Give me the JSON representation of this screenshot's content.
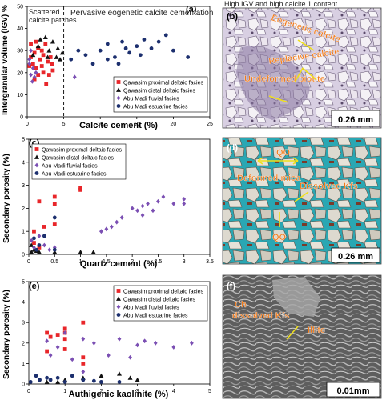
{
  "chart_data": [
    {
      "id": "a",
      "type": "scatter",
      "panel_label": "(a)",
      "xlabel": "Calcite cement (%)",
      "ylabel": "Intergranular volume (IGV) %",
      "xlim": [
        0,
        25
      ],
      "ylim": [
        0,
        50
      ],
      "xticks": [
        0,
        5,
        10,
        15,
        20,
        25
      ],
      "yticks": [
        0,
        10,
        20,
        30,
        40,
        50
      ],
      "divider_x": 5,
      "annotations": [
        "Scattered calcite patches",
        "Pervasive eogenetic calcite cementation"
      ],
      "legend_position": "bottom-right",
      "series": [
        {
          "name": "Qawasim proximal deltaic facies",
          "marker": "square",
          "color": "#e8262a",
          "points": [
            [
              0.5,
              27
            ],
            [
              0.8,
              24
            ],
            [
              1,
              29
            ],
            [
              1.2,
              22
            ],
            [
              1.5,
              31
            ],
            [
              1.8,
              26
            ],
            [
              2,
              23
            ],
            [
              2.2,
              28
            ],
            [
              2.5,
              33
            ],
            [
              2.8,
              25
            ],
            [
              3,
              19
            ],
            [
              3.2,
              27
            ],
            [
              3.5,
              21
            ],
            [
              1,
              17
            ],
            [
              0.5,
              33
            ],
            [
              1.5,
              19
            ],
            [
              2,
              30
            ],
            [
              0.3,
              23
            ],
            [
              2.6,
              15
            ],
            [
              3.4,
              24
            ],
            [
              1.2,
              34
            ],
            [
              2.2,
              20
            ]
          ]
        },
        {
          "name": "Qawasim distal deltaic facies",
          "marker": "triangle",
          "color": "#111111",
          "points": [
            [
              0.8,
              28
            ],
            [
              1.5,
              32
            ],
            [
              2.5,
              36
            ],
            [
              3,
              30
            ],
            [
              3.5,
              34
            ],
            [
              4,
              27
            ],
            [
              4.5,
              26
            ],
            [
              4.8,
              29
            ],
            [
              2.8,
              27
            ],
            [
              1.8,
              35
            ],
            [
              4.2,
              31
            ]
          ]
        },
        {
          "name": "Abu Madi fluvial facies",
          "marker": "diamond",
          "color": "#7b4fb3",
          "points": [
            [
              0.3,
              24
            ],
            [
              0.5,
              19
            ],
            [
              0.8,
              22
            ],
            [
              1,
              18
            ],
            [
              0.5,
              30
            ],
            [
              1.2,
              20
            ],
            [
              0.3,
              26
            ],
            [
              6.5,
              18
            ],
            [
              0.7,
              16
            ]
          ]
        },
        {
          "name": "Abu Madi estuarine facies",
          "marker": "circle",
          "color": "#1c2f6e",
          "points": [
            [
              6,
              26
            ],
            [
              8,
              28
            ],
            [
              9,
              24
            ],
            [
              10,
              30
            ],
            [
              11,
              33
            ],
            [
              12,
              27
            ],
            [
              13,
              34
            ],
            [
              14,
              29
            ],
            [
              15,
              32
            ],
            [
              16,
              35
            ],
            [
              17,
              31
            ],
            [
              18,
              34
            ],
            [
              19,
              37
            ],
            [
              20,
              30
            ],
            [
              22,
              27
            ],
            [
              12.5,
              24
            ],
            [
              15.5,
              28
            ],
            [
              11,
              26
            ],
            [
              7,
              30
            ],
            [
              13.5,
              31
            ]
          ]
        }
      ]
    },
    {
      "id": "c",
      "type": "scatter",
      "panel_label": "(c)",
      "xlabel": "Quartz cement (%)",
      "ylabel": "Secondary porosity (%)",
      "xlim": [
        0,
        3.5
      ],
      "ylim": [
        0,
        5
      ],
      "xticks": [
        0,
        0.5,
        1,
        1.5,
        2,
        2.5,
        3,
        3.5
      ],
      "yticks": [
        0,
        1,
        2,
        3,
        4,
        5
      ],
      "legend_position": "top-left",
      "series": [
        {
          "name": "Qawasim proximal deltaic facies",
          "marker": "square",
          "color": "#e8262a",
          "points": [
            [
              0.1,
              1
            ],
            [
              0.2,
              2.3
            ],
            [
              0.5,
              2.5
            ],
            [
              0.5,
              2.2
            ],
            [
              1,
              2.9
            ],
            [
              1,
              2.8
            ],
            [
              0.1,
              0.5
            ],
            [
              0.2,
              0.3
            ],
            [
              0.3,
              1.2
            ],
            [
              0.5,
              1.3
            ]
          ]
        },
        {
          "name": "Qawasim distal deltaic facies",
          "marker": "triangle",
          "color": "#111111",
          "points": [
            [
              0.05,
              0.1
            ],
            [
              0.1,
              0.2
            ],
            [
              0.15,
              0.15
            ],
            [
              0.2,
              0.1
            ],
            [
              0.5,
              0.1
            ],
            [
              1,
              0.1
            ],
            [
              1.25,
              0.1
            ],
            [
              0.05,
              0.4
            ]
          ]
        },
        {
          "name": "Abu Madi fluvial facies",
          "marker": "diamond",
          "color": "#7b4fb3",
          "points": [
            [
              0.05,
              0.6
            ],
            [
              0.1,
              0.3
            ],
            [
              0.2,
              0.8
            ],
            [
              0.3,
              0.4
            ],
            [
              0.5,
              0.3
            ],
            [
              1.5,
              1.1
            ],
            [
              1.6,
              1.2
            ],
            [
              1.7,
              1.4
            ],
            [
              2.1,
              1.9
            ],
            [
              2.2,
              2.1
            ],
            [
              2.3,
              2.2
            ],
            [
              2.6,
              2.5
            ],
            [
              2.8,
              2.2
            ],
            [
              3,
              2.4
            ],
            [
              2,
              2.0
            ],
            [
              2.5,
              2.3
            ],
            [
              1.8,
              1.6
            ],
            [
              2.4,
              1.9
            ],
            [
              3,
              2.2
            ],
            [
              1.4,
              1.0
            ],
            [
              2.2,
              1.7
            ],
            [
              0.4,
              0.2
            ]
          ]
        },
        {
          "name": "Abu Madi estuarine facies",
          "marker": "circle",
          "color": "#1c2f6e",
          "points": [
            [
              0.5,
              1.6
            ],
            [
              0.1,
              0.7
            ],
            [
              0.2,
              0.4
            ],
            [
              0.3,
              0.8
            ],
            [
              0.5,
              0.2
            ],
            [
              0.15,
              0.2
            ]
          ]
        }
      ]
    },
    {
      "id": "e",
      "type": "scatter",
      "panel_label": "(e)",
      "xlabel": "Authigenic kaolinite (%)",
      "ylabel": "Secondary porosity (%)",
      "xlim": [
        0,
        5
      ],
      "ylim": [
        0,
        5
      ],
      "xticks": [
        0,
        1,
        2,
        3,
        4,
        5
      ],
      "yticks": [
        0,
        1,
        2,
        3,
        4,
        5
      ],
      "legend_position": "top-right",
      "series": [
        {
          "name": "Qawasim proximal deltaic facies",
          "marker": "square",
          "color": "#e8262a",
          "points": [
            [
              0.5,
              2.5
            ],
            [
              0.6,
              2.3
            ],
            [
              0.8,
              2.4
            ],
            [
              1,
              2.7
            ],
            [
              1,
              2.5
            ],
            [
              1.5,
              3
            ],
            [
              1.5,
              1
            ],
            [
              0.5,
              1.6
            ],
            [
              1,
              1.7
            ],
            [
              1.5,
              1.3
            ],
            [
              1,
              2.2
            ]
          ]
        },
        {
          "name": "Qawasim distal deltaic facies",
          "marker": "triangle",
          "color": "#111111",
          "points": [
            [
              0.5,
              0.1
            ],
            [
              1,
              0.2
            ],
            [
              1.5,
              0.3
            ],
            [
              2.5,
              0.5
            ],
            [
              2.8,
              0.3
            ],
            [
              3,
              0.2
            ],
            [
              2,
              0.4
            ],
            [
              0.8,
              0.1
            ]
          ]
        },
        {
          "name": "Abu Madi fluvial facies",
          "marker": "diamond",
          "color": "#7b4fb3",
          "points": [
            [
              0.5,
              2.1
            ],
            [
              0.8,
              1.8
            ],
            [
              1,
              2.5
            ],
            [
              1.2,
              1.2
            ],
            [
              1.5,
              2.2
            ],
            [
              1.8,
              2.0
            ],
            [
              2.2,
              1.4
            ],
            [
              2.5,
              2.2
            ],
            [
              3,
              1.9
            ],
            [
              3.2,
              2.1
            ],
            [
              4.5,
              2.0
            ],
            [
              3.5,
              2.0
            ],
            [
              4,
              1.8
            ],
            [
              2.8,
              1.3
            ],
            [
              1.5,
              0.6
            ],
            [
              0.6,
              1.4
            ]
          ]
        },
        {
          "name": "Abu Madi estuarine facies",
          "marker": "circle",
          "color": "#1c2f6e",
          "points": [
            [
              0.05,
              0.1
            ],
            [
              0.3,
              0.2
            ],
            [
              0.5,
              0.3
            ],
            [
              0.6,
              0.2
            ],
            [
              1,
              0.1
            ],
            [
              1.5,
              0.2
            ],
            [
              2,
              0.1
            ],
            [
              0.8,
              0.3
            ],
            [
              1.2,
              0.4
            ],
            [
              2.5,
              0.1
            ],
            [
              0.2,
              0.4
            ],
            [
              1.8,
              0.15
            ]
          ]
        }
      ]
    }
  ],
  "photos": [
    {
      "id": "b",
      "panel_label": "(b)",
      "caption": "High IGV and high calcite 1 content",
      "scale": "0.26 mm",
      "labels": [
        "Eogenetic calcite",
        "Replacive calcite",
        "Undeformed biotite"
      ]
    },
    {
      "id": "d",
      "panel_label": "(d)",
      "scale": "0.26 mm",
      "labels": [
        "QO",
        "Deformed mica",
        "Dissolved Kfs",
        "QO"
      ]
    },
    {
      "id": "f",
      "panel_label": "(f)",
      "scale": "0.01mm",
      "labels": [
        "Ch",
        "dissolved Kfs",
        "Illite"
      ]
    }
  ]
}
